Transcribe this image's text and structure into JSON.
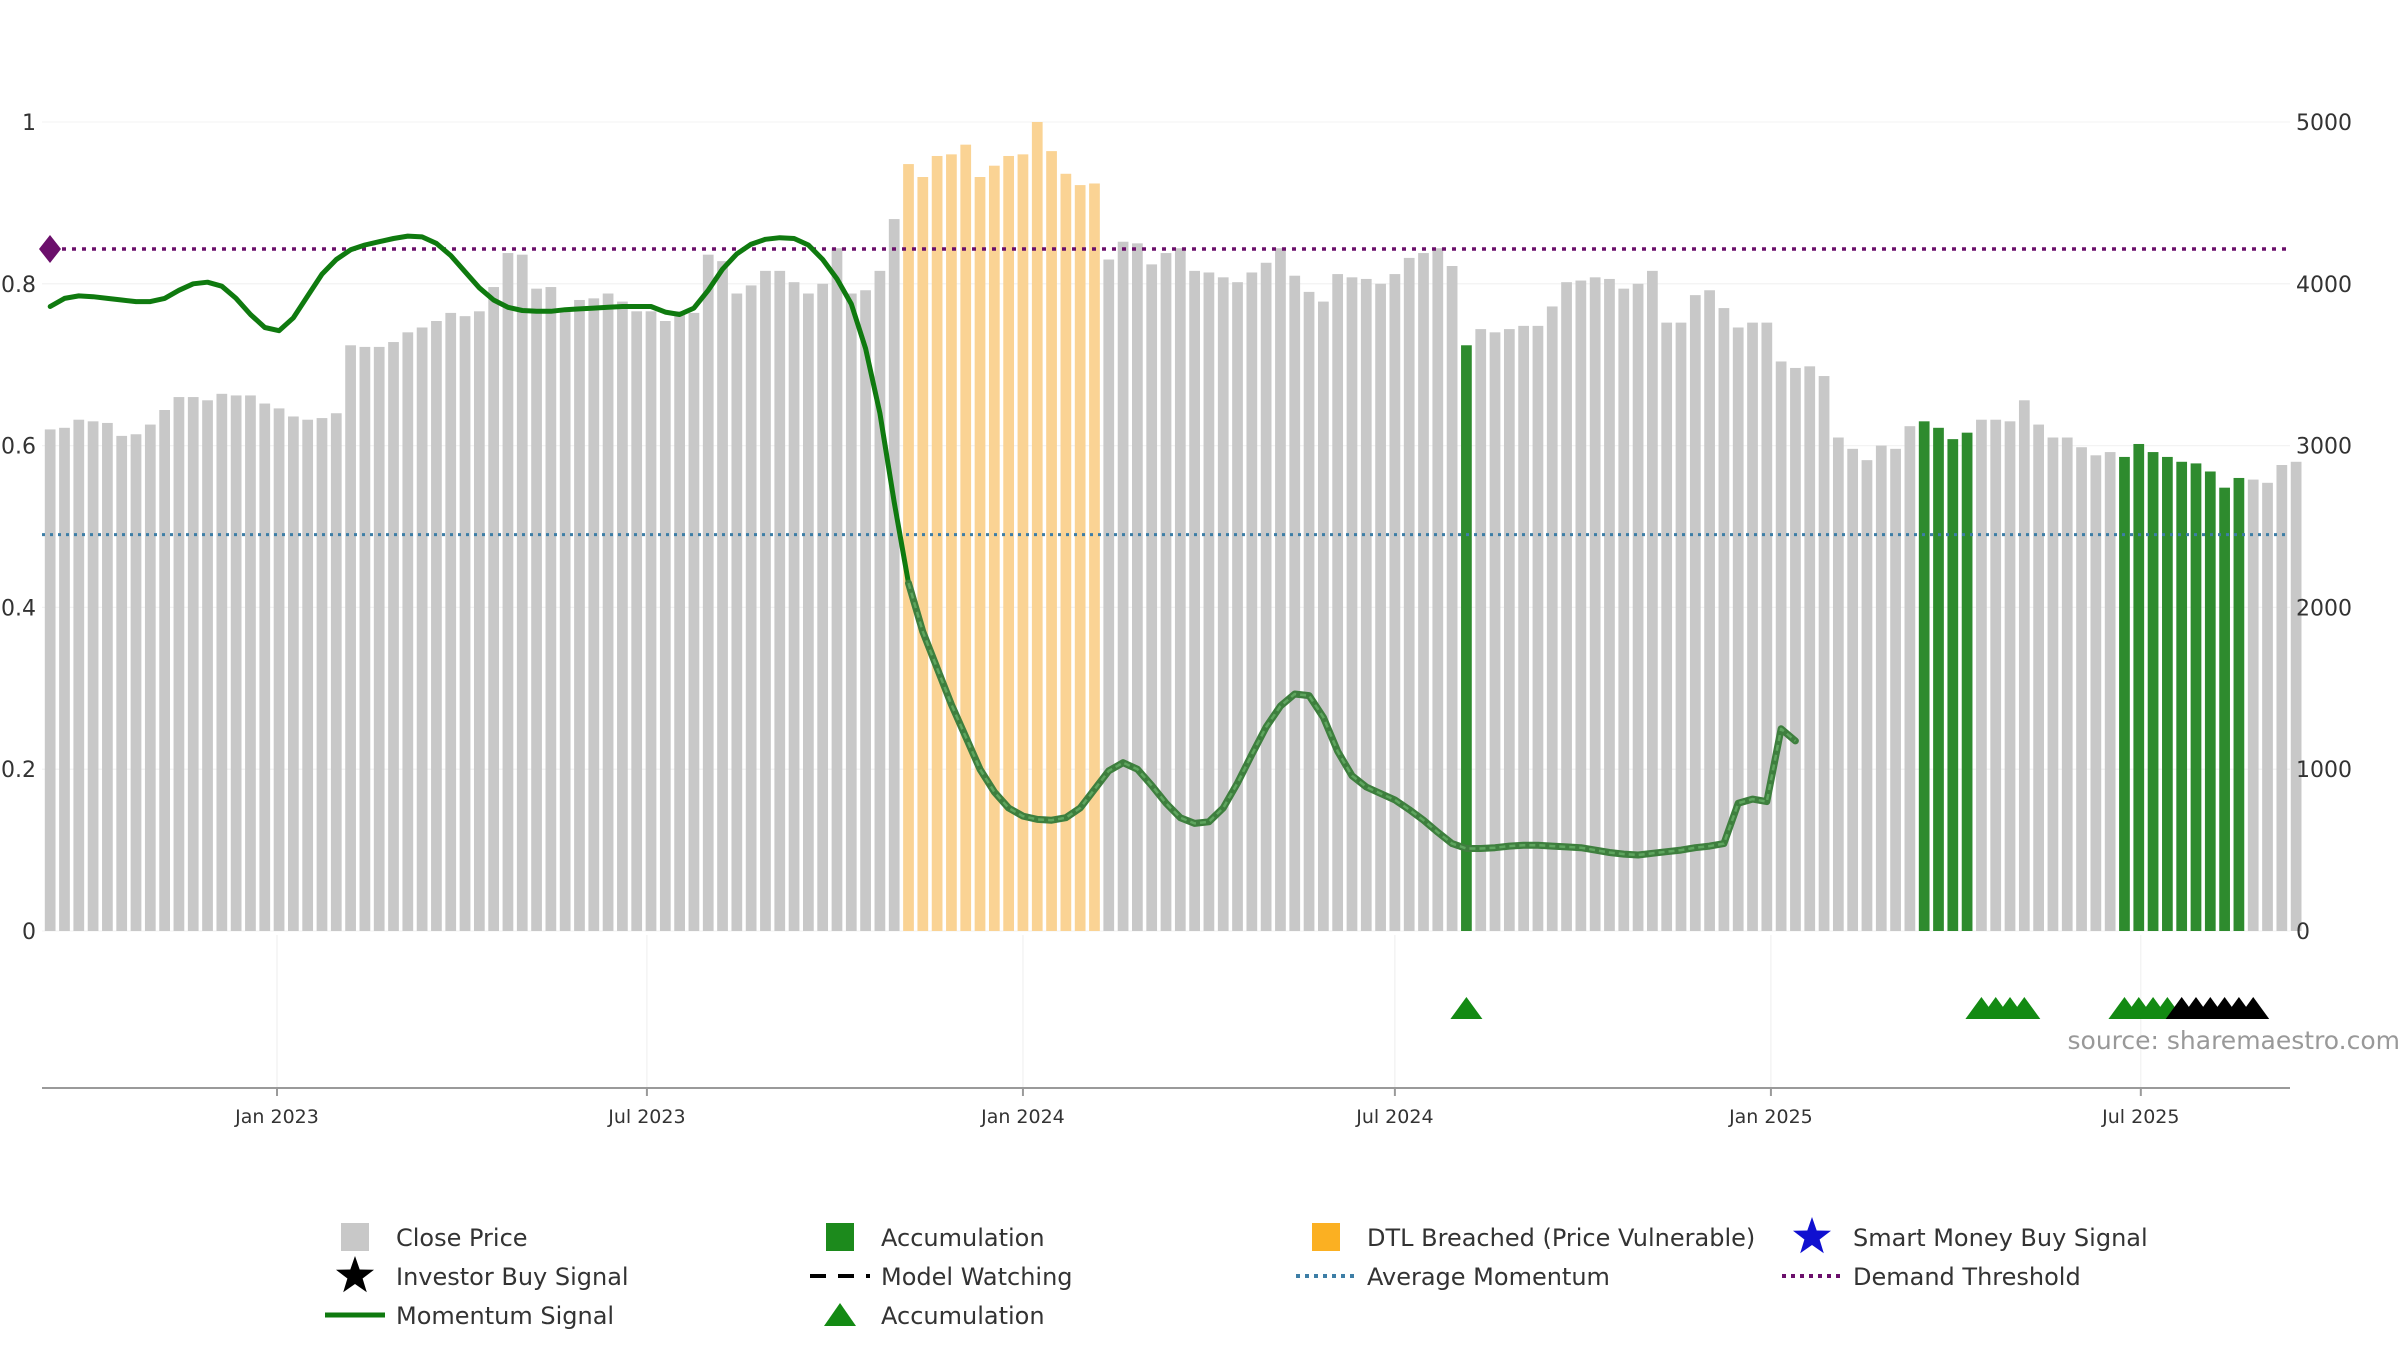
{
  "chart_data": {
    "type": "bar",
    "title": "",
    "source": "source: sharemaestro.com",
    "left_axis": {
      "min": 0,
      "max": 1,
      "ticks": [
        "0",
        "0.2",
        "0.4",
        "0.6",
        "0.8",
        "1"
      ],
      "tick_values": [
        0,
        0.2,
        0.4,
        0.6,
        0.8,
        1
      ]
    },
    "right_axis": {
      "min": 0,
      "max": 5000,
      "ticks": [
        "0",
        "1000",
        "2000",
        "3000",
        "4000",
        "5000"
      ],
      "tick_values": [
        0,
        1000,
        2000,
        3000,
        4000,
        5000
      ]
    },
    "x_axis": {
      "start": "2022-09-08",
      "end": "2025-09-12",
      "ticks": [
        {
          "label": "Jan 2023",
          "date": "2023-01-01"
        },
        {
          "label": "Jul 2023",
          "date": "2023-07-01"
        },
        {
          "label": "Jan 2024",
          "date": "2024-01-01"
        },
        {
          "label": "Jul 2024",
          "date": "2024-07-01"
        },
        {
          "label": "Jan 2025",
          "date": "2025-01-01"
        },
        {
          "label": "Jul 2025",
          "date": "2025-07-01"
        }
      ]
    },
    "first_bar_date": "2022-09-12",
    "bar_interval_days": 7,
    "close_price": [
      3100,
      3110,
      3160,
      3150,
      3140,
      3060,
      3070,
      3130,
      3220,
      3300,
      3300,
      3280,
      3320,
      3310,
      3310,
      3260,
      3230,
      3180,
      3160,
      3170,
      3200,
      3620,
      3610,
      3610,
      3640,
      3700,
      3730,
      3770,
      3820,
      3800,
      3830,
      3980,
      4190,
      4180,
      3970,
      3980,
      3850,
      3900,
      3910,
      3940,
      3890,
      3830,
      3830,
      3770,
      3830,
      3820,
      4180,
      4140,
      3940,
      3990,
      4080,
      4080,
      4010,
      3940,
      4000,
      4220,
      3940,
      3960,
      4080,
      4400,
      4740,
      4660,
      4790,
      4800,
      4860,
      4660,
      4730,
      4790,
      4800,
      5000,
      4820,
      4680,
      4610,
      4620,
      4150,
      4260,
      4250,
      4120,
      4190,
      4220,
      4080,
      4070,
      4040,
      4010,
      4070,
      4130,
      4220,
      4050,
      3950,
      3890,
      4060,
      4040,
      4030,
      4000,
      4060,
      4160,
      4190,
      4220,
      4110,
      3620,
      3720,
      3700,
      3720,
      3740,
      3740,
      3860,
      4010,
      4020,
      4040,
      4030,
      3970,
      4000,
      4080,
      3760,
      3760,
      3930,
      3960,
      3850,
      3730,
      3760,
      3760,
      3520,
      3480,
      3490,
      3430,
      3050,
      2980,
      2910,
      3000,
      2980,
      3120,
      3150,
      3110,
      3040,
      3080,
      3160,
      3160,
      3150,
      3280,
      3130,
      3050,
      3050,
      2990,
      2940,
      2960,
      2930,
      3010,
      2960,
      2930,
      2900,
      2890,
      2840,
      2740,
      2800,
      2790,
      2770,
      2880,
      2900
    ],
    "bar_types": [
      "n",
      "n",
      "n",
      "n",
      "n",
      "n",
      "n",
      "n",
      "n",
      "n",
      "n",
      "n",
      "n",
      "n",
      "n",
      "n",
      "n",
      "n",
      "n",
      "n",
      "n",
      "n",
      "n",
      "n",
      "n",
      "n",
      "n",
      "n",
      "n",
      "n",
      "n",
      "n",
      "n",
      "n",
      "n",
      "n",
      "n",
      "n",
      "n",
      "n",
      "n",
      "n",
      "n",
      "n",
      "n",
      "n",
      "n",
      "n",
      "n",
      "n",
      "n",
      "n",
      "n",
      "n",
      "n",
      "n",
      "n",
      "n",
      "n",
      "n",
      "d",
      "d",
      "d",
      "d",
      "d",
      "d",
      "d",
      "d",
      "d",
      "d",
      "d",
      "d",
      "d",
      "d",
      "n",
      "n",
      "n",
      "n",
      "n",
      "n",
      "n",
      "n",
      "n",
      "n",
      "n",
      "n",
      "n",
      "n",
      "n",
      "n",
      "n",
      "n",
      "n",
      "n",
      "n",
      "n",
      "n",
      "n",
      "n",
      "a",
      "n",
      "n",
      "n",
      "n",
      "n",
      "n",
      "n",
      "n",
      "n",
      "n",
      "n",
      "n",
      "n",
      "n",
      "n",
      "n",
      "n",
      "n",
      "n",
      "n",
      "n",
      "n",
      "n",
      "n",
      "n",
      "n",
      "n",
      "n",
      "n",
      "n",
      "n",
      "a",
      "a",
      "a",
      "a",
      "n",
      "n",
      "n",
      "n",
      "n",
      "n",
      "n",
      "n",
      "n",
      "n",
      "a",
      "a",
      "a",
      "a",
      "a",
      "a",
      "a",
      "a",
      "a",
      "n",
      "n",
      "n"
    ],
    "momentum_signal": [
      0.772,
      0.782,
      0.785,
      0.784,
      0.782,
      0.78,
      0.778,
      0.778,
      0.782,
      0.792,
      0.8,
      0.802,
      0.797,
      0.782,
      0.762,
      0.746,
      0.742,
      0.758,
      0.785,
      0.812,
      0.83,
      0.842,
      0.848,
      0.852,
      0.856,
      0.859,
      0.858,
      0.85,
      0.835,
      0.815,
      0.795,
      0.78,
      0.771,
      0.767,
      0.766,
      0.766,
      0.768,
      0.769,
      0.77,
      0.771,
      0.772,
      0.772,
      0.772,
      0.765,
      0.762,
      0.77,
      0.792,
      0.818,
      0.837,
      0.849,
      0.855,
      0.857,
      0.856,
      0.848,
      0.83,
      0.806,
      0.775,
      0.72,
      0.64,
      0.53,
      0.43,
      0.37,
      0.325,
      0.28,
      0.24,
      0.2,
      0.172,
      0.152,
      0.142,
      0.138,
      0.137,
      0.14,
      0.152,
      0.175,
      0.198,
      0.208,
      0.2,
      0.18,
      0.158,
      0.14,
      0.133,
      0.135,
      0.152,
      0.183,
      0.218,
      0.252,
      0.278,
      0.293,
      0.291,
      0.264,
      0.222,
      0.192,
      0.178,
      0.17,
      0.162,
      0.15,
      0.137,
      0.122,
      0.108,
      0.102,
      0.102,
      0.103,
      0.105,
      0.106,
      0.106,
      0.105,
      0.104,
      0.103,
      0.1,
      0.097,
      0.095,
      0.094,
      0.096,
      0.098,
      0.1,
      0.103,
      0.105,
      0.108,
      0.158,
      0.163,
      0.16,
      0.25,
      0.235
    ],
    "momentum_solid_until_index": 60,
    "average_momentum": 0.49,
    "demand_threshold": 0.843,
    "accumulation_markers": [
      "2024-08-05",
      "2025-04-14",
      "2025-04-21",
      "2025-04-28",
      "2025-05-05",
      "2025-06-23",
      "2025-06-30",
      "2025-07-07",
      "2025-07-14"
    ],
    "investor_buy_markers": [
      "2025-07-21",
      "2025-07-28",
      "2025-08-04",
      "2025-08-11",
      "2025-08-18",
      "2025-08-25"
    ],
    "colors": {
      "close_price": "#c8c8c8",
      "accumulation": "#2e8b2e",
      "dtl_breached": "#fad394",
      "momentum": "#0f7a0f",
      "average_momentum": "#3d7ea6",
      "demand_threshold": "#6b0f6b",
      "smart_money": "#1010d0",
      "investor": "#000000"
    },
    "legend": [
      {
        "label": "Close Price",
        "symbol": "square-gray"
      },
      {
        "label": "Accumulation",
        "symbol": "square-green"
      },
      {
        "label": "DTL Breached (Price Vulnerable)",
        "symbol": "square-orange"
      },
      {
        "label": "Smart Money Buy Signal",
        "symbol": "star-blue"
      },
      {
        "label": "Investor Buy Signal",
        "symbol": "star-black"
      },
      {
        "label": "Model Watching",
        "symbol": "dash-black"
      },
      {
        "label": "Average Momentum",
        "symbol": "dot-blue"
      },
      {
        "label": "Demand Threshold",
        "symbol": "dot-purple"
      },
      {
        "label": "Momentum Signal",
        "symbol": "line-green"
      },
      {
        "label": "Accumulation",
        "symbol": "triangle-green"
      }
    ]
  }
}
